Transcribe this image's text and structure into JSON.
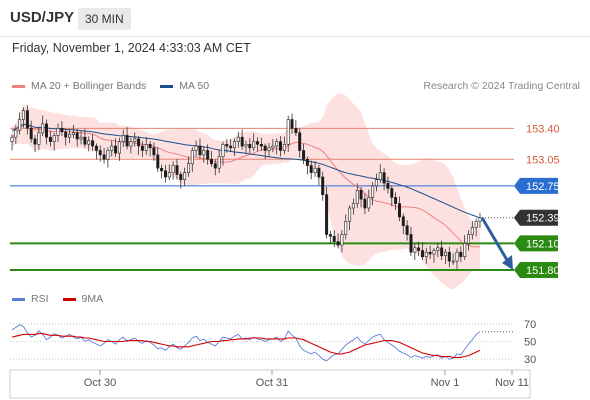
{
  "header": {
    "symbol": "USD/JPY",
    "timeframe": "30 MIN"
  },
  "datetime": "Friday, November 1, 2024 4:33:03 AM CET",
  "legend_top": [
    {
      "label": "MA 20 + Bollinger Bands",
      "color": "#f08080"
    },
    {
      "label": "MA 50",
      "color": "#1f4e8c"
    }
  ],
  "credit": "Research © 2024 Trading Central",
  "legend_bottom": [
    {
      "label": "RSI",
      "color": "#5b7fd8"
    },
    {
      "label": "9MA",
      "color": "#d00000"
    }
  ],
  "chart_data": [
    {
      "type": "candlestick",
      "ylim": [
        151.63,
        153.72
      ],
      "x_ticks": [
        "Oct 30",
        "Oct 31",
        "Nov 1",
        "Nov 11"
      ],
      "levels": [
        {
          "label": "153.40",
          "value": 153.4,
          "kind": "resistance-minor",
          "color": "#e8836e"
        },
        {
          "label": "153.05",
          "value": 153.05,
          "kind": "resistance-minor",
          "color": "#e8836e"
        },
        {
          "label": "152.75",
          "value": 152.75,
          "kind": "resistance",
          "color": "#2b6ed2"
        },
        {
          "label": "152.39",
          "value": 152.39,
          "kind": "last-price",
          "color": "#333333"
        },
        {
          "label": "152.10",
          "value": 152.1,
          "kind": "support",
          "color": "#2a8a12"
        },
        {
          "label": "151.80",
          "value": 151.8,
          "kind": "support",
          "color": "#2a8a12"
        }
      ],
      "close_series": [
        153.3,
        153.38,
        153.5,
        153.6,
        153.4,
        153.28,
        153.22,
        153.35,
        153.45,
        153.3,
        153.25,
        153.32,
        153.4,
        153.36,
        153.3,
        153.33,
        153.35,
        153.28,
        153.3,
        153.22,
        153.26,
        153.2,
        153.15,
        153.1,
        153.05,
        153.15,
        153.2,
        153.12,
        153.25,
        153.32,
        153.2,
        153.25,
        153.28,
        153.2,
        153.15,
        153.22,
        153.18,
        153.1,
        152.95,
        152.92,
        152.85,
        152.9,
        152.98,
        152.88,
        152.82,
        152.9,
        153.0,
        153.15,
        153.2,
        153.1,
        153.15,
        153.05,
        153.0,
        152.95,
        153.08,
        153.22,
        153.2,
        153.18,
        153.25,
        153.3,
        153.2,
        153.22,
        153.18,
        153.25,
        153.22,
        153.2,
        153.15,
        153.18,
        153.2,
        153.25,
        153.15,
        153.22,
        153.5,
        153.4,
        153.35,
        153.15,
        153.05,
        152.98,
        152.9,
        152.95,
        152.85,
        152.65,
        152.2,
        152.18,
        152.12,
        152.08,
        152.2,
        152.35,
        152.5,
        152.55,
        152.7,
        152.6,
        152.5,
        152.62,
        152.75,
        152.82,
        152.9,
        152.78,
        152.72,
        152.62,
        152.55,
        152.4,
        152.3,
        152.2,
        152.0,
        152.05,
        152.02,
        151.95,
        152.0,
        151.98,
        152.02,
        152.05,
        151.96,
        152.0,
        151.9,
        151.9,
        152.0,
        151.95,
        152.1,
        152.2,
        152.28,
        152.35,
        152.39
      ],
      "ma50": {
        "name": "MA 50",
        "from": 153.45,
        "to": 152.35
      },
      "projection": {
        "from": 152.39,
        "to": 151.8
      }
    },
    {
      "type": "line",
      "ylim": [
        20,
        80
      ],
      "y_ticks": [
        70,
        50,
        30
      ],
      "series": [
        {
          "name": "RSI",
          "values": [
            63,
            66,
            69,
            67,
            60,
            55,
            57,
            62,
            58,
            52,
            55,
            59,
            57,
            54,
            56,
            58,
            55,
            53,
            55,
            50,
            52,
            49,
            47,
            45,
            48,
            52,
            50,
            47,
            52,
            55,
            50,
            52,
            54,
            50,
            48,
            51,
            49,
            46,
            42,
            43,
            40,
            44,
            47,
            43,
            41,
            45,
            49,
            54,
            56,
            51,
            53,
            49,
            47,
            45,
            50,
            55,
            54,
            53,
            56,
            58,
            53,
            54,
            52,
            55,
            53,
            52,
            50,
            52,
            53,
            55,
            50,
            53,
            62,
            57,
            54,
            45,
            40,
            38,
            36,
            38,
            34,
            30,
            28,
            32,
            35,
            36,
            41,
            46,
            49,
            52,
            55,
            50,
            47,
            51,
            55,
            57,
            58,
            52,
            49,
            46,
            43,
            39,
            37,
            35,
            32,
            34,
            33,
            31,
            33,
            32,
            34,
            35,
            31,
            33,
            30,
            31,
            36,
            35,
            41,
            47,
            52,
            58,
            61
          ]
        },
        {
          "name": "9MA",
          "values": [
            55,
            56,
            57,
            58,
            58,
            58,
            58,
            59,
            59,
            58,
            57,
            57,
            57,
            56,
            56,
            56,
            56,
            55,
            55,
            54,
            54,
            53,
            52,
            51,
            50,
            50,
            50,
            50,
            50,
            50,
            51,
            51,
            51,
            51,
            51,
            50,
            50,
            49,
            48,
            47,
            46,
            45,
            45,
            44,
            44,
            44,
            44,
            45,
            46,
            47,
            48,
            49,
            50,
            50,
            50,
            51,
            51,
            52,
            52,
            53,
            53,
            53,
            54,
            54,
            54,
            54,
            53,
            53,
            53,
            53,
            53,
            53,
            54,
            54,
            54,
            53,
            52,
            50,
            48,
            46,
            44,
            42,
            40,
            38,
            37,
            36,
            36,
            37,
            38,
            40,
            42,
            44,
            46,
            47,
            48,
            49,
            50,
            51,
            51,
            51,
            50,
            49,
            47,
            45,
            43,
            41,
            39,
            37,
            36,
            35,
            34,
            34,
            33,
            33,
            33,
            32,
            32,
            32,
            33,
            34,
            36,
            38,
            40
          ]
        }
      ]
    }
  ]
}
